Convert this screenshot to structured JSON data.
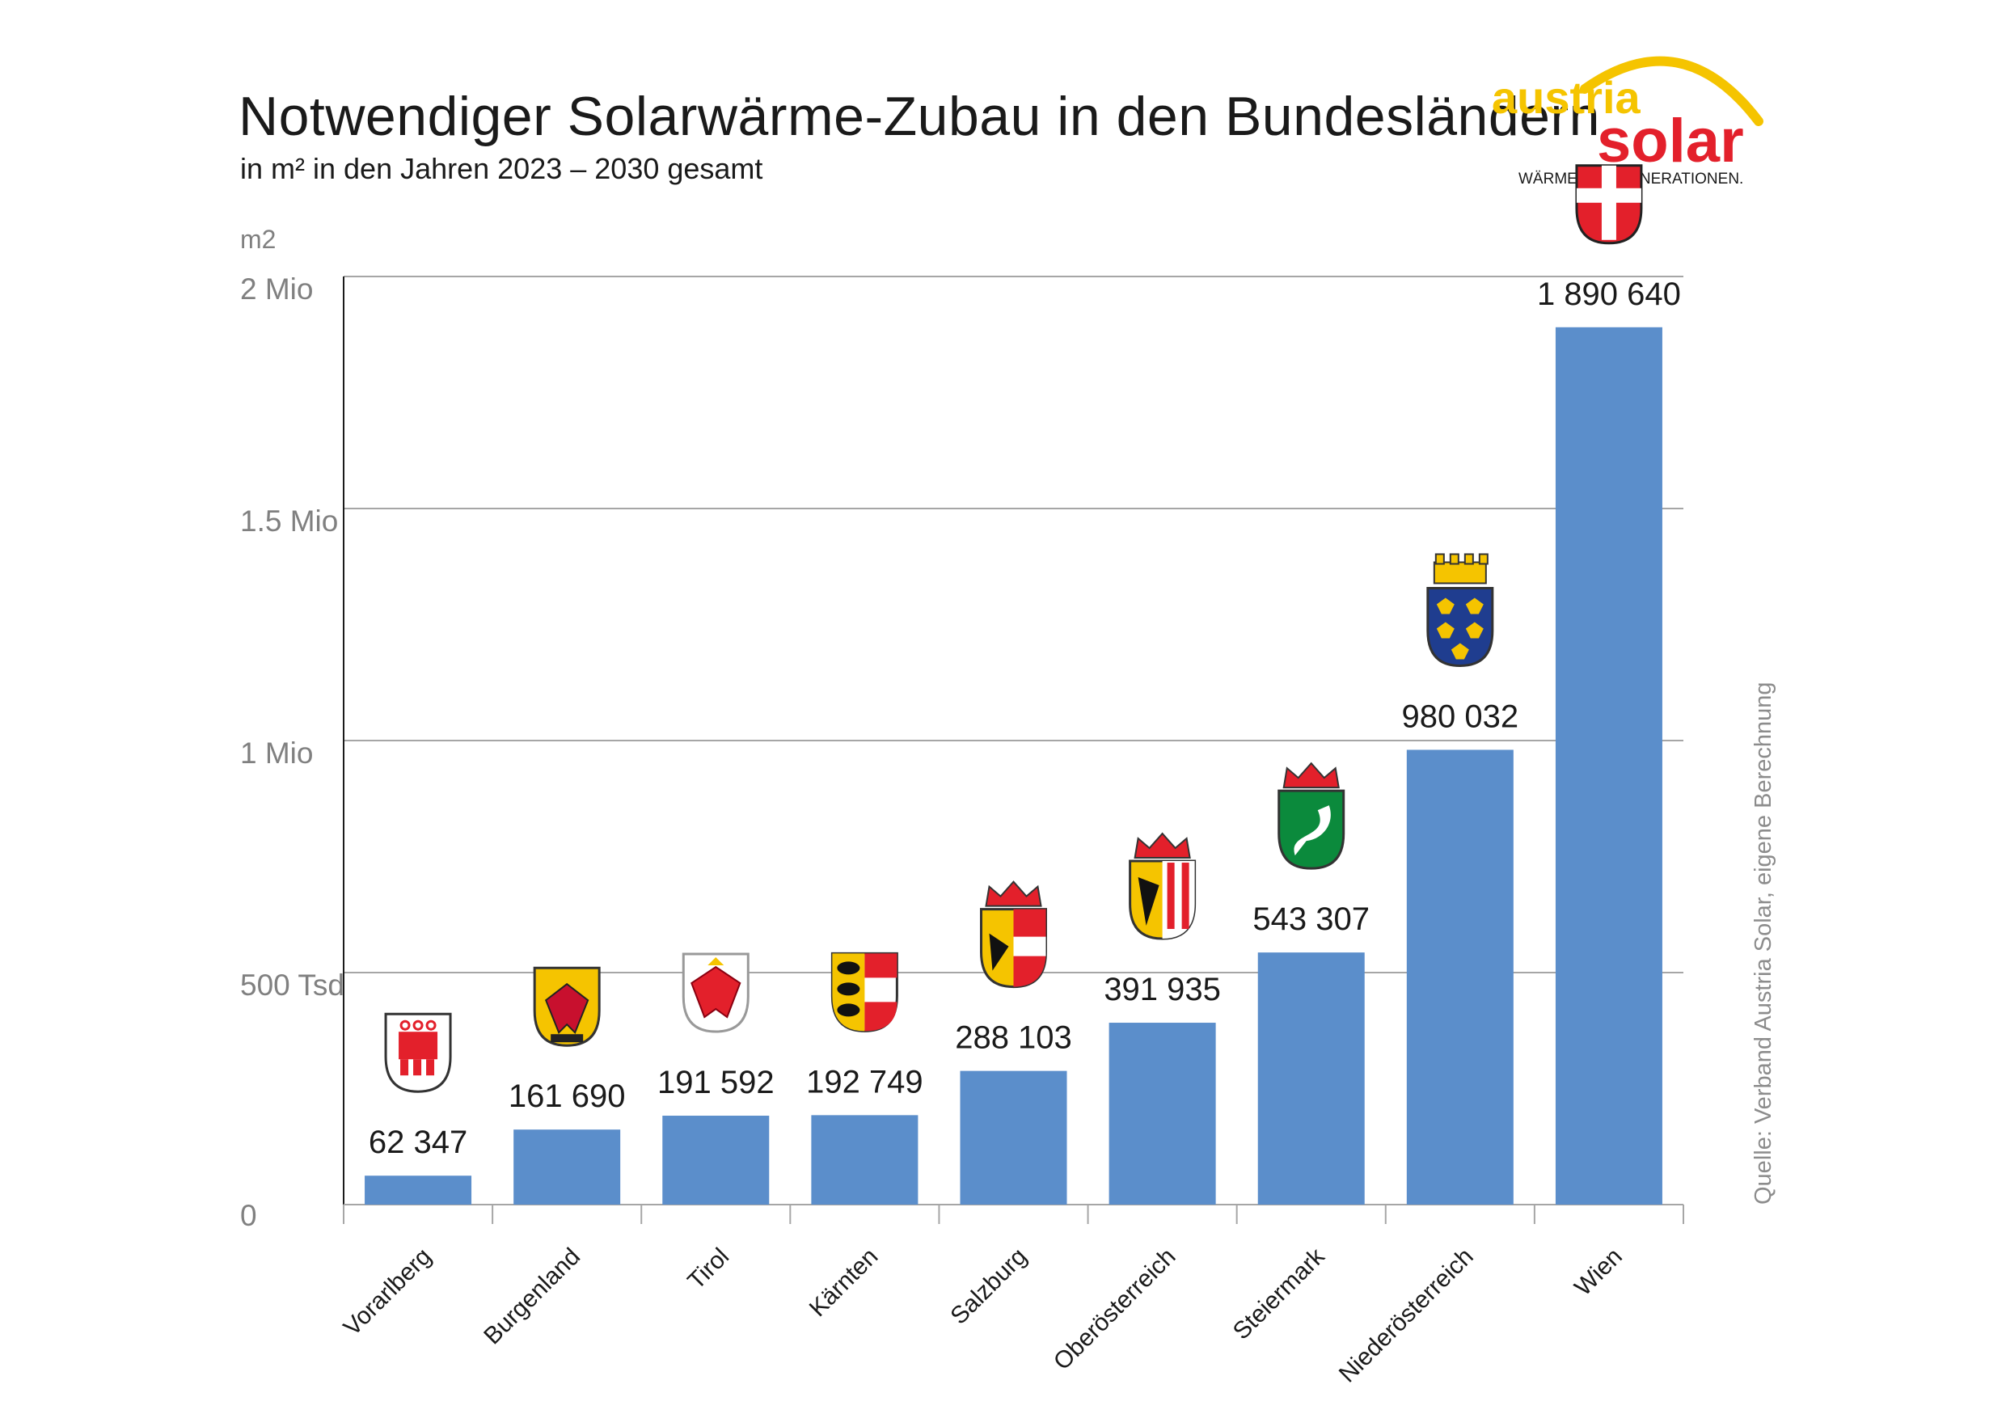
{
  "title": "Notwendiger Solarwärme-Zubau in den Bundesländern",
  "subtitle": "in m² in den Jahren 2023 – 2030 gesamt",
  "logo": {
    "top_word": "austria",
    "bottom_word": "solar",
    "tagline": "WÄRME FÜR GENERATIONEN."
  },
  "source": "Quelle: Verband Austria Solar, eigene Berechnung",
  "colors": {
    "bar": "#5b8ecb",
    "grid": "#a6a6a6",
    "axis": "#1a1a1a",
    "logo_yellow": "#f5c400",
    "logo_red": "#e3202b"
  },
  "chart_data": {
    "type": "bar",
    "title": "Notwendiger Solarwärme-Zubau in den Bundesländern",
    "subtitle": "in m² in den Jahren 2023 – 2030 gesamt",
    "ylabel": "m2",
    "ylim": [
      0,
      2000000
    ],
    "yticks": [
      0,
      500000,
      1000000,
      1500000,
      2000000
    ],
    "ytick_labels": [
      "0",
      "500 Tsd",
      "1 Mio",
      "1.5 Mio",
      "2 Mio"
    ],
    "grid": true,
    "categories": [
      "Vorarlberg",
      "Burgenland",
      "Tirol",
      "Kärnten",
      "Salzburg",
      "Oberösterreich",
      "Steiermark",
      "Niederösterreich",
      "Wien"
    ],
    "values": [
      62347,
      161690,
      191592,
      192749,
      288103,
      391935,
      543307,
      980032,
      1890640
    ],
    "value_labels": [
      "62 347",
      "161 690",
      "191 592",
      "192 749",
      "288 103",
      "391 935",
      "543 307",
      "980 032",
      "1 890 640"
    ],
    "icons": [
      "vorarlberg-coat-of-arms-icon",
      "burgenland-coat-of-arms-icon",
      "tirol-coat-of-arms-icon",
      "kaernten-coat-of-arms-icon",
      "salzburg-coat-of-arms-icon",
      "oberoesterreich-coat-of-arms-icon",
      "steiermark-coat-of-arms-icon",
      "niederoesterreich-coat-of-arms-icon",
      "wien-coat-of-arms-icon"
    ]
  }
}
